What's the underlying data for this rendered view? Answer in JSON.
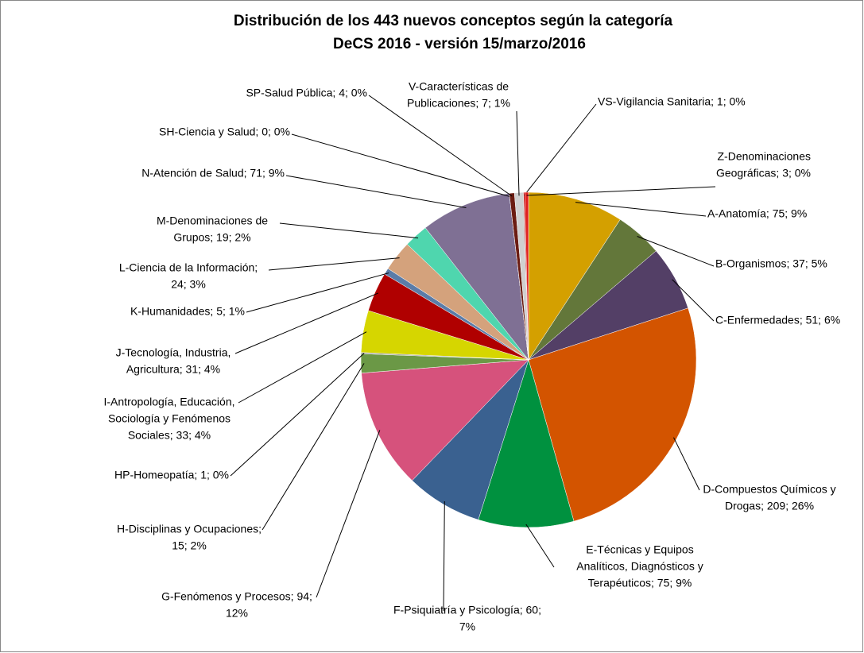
{
  "chart_data": {
    "type": "pie",
    "title": [
      "Distribución de los 443 nuevos conceptos según la categoría",
      "DeCS  2016  - versión 15/marzo/2016"
    ],
    "values": [
      75,
      37,
      51,
      209,
      75,
      60,
      94,
      15,
      1,
      33,
      31,
      5,
      24,
      19,
      71,
      0,
      4,
      7,
      1,
      3
    ],
    "labels": [
      [
        "A-Anatomía; 75; 9%"
      ],
      [
        "B-Organismos; 37; 5%"
      ],
      [
        "C-Enfermedades; 51; 6%"
      ],
      [
        "D-Compuestos Químicos y",
        "Drogas; 209; 26%"
      ],
      [
        "E-Técnicas  y Equipos",
        "Analíticos, Diagnósticos y",
        "Terapéuticos; 75; 9%"
      ],
      [
        "F-Psiquiatría y Psicología; 60;",
        "7%"
      ],
      [
        "G-Fenómenos y Procesos; 94;",
        "12%"
      ],
      [
        "H-Disciplinas y Ocupaciones;",
        "15; 2%"
      ],
      [
        "HP-Homeopatía; 1; 0%"
      ],
      [
        "I-Antropología, Educación,",
        "Sociología y Fenómenos",
        "Sociales; 33; 4%"
      ],
      [
        "J-Tecnología,  Industria,",
        "Agricultura; 31; 4%"
      ],
      [
        "K-Humanidades; 5; 1%"
      ],
      [
        "L-Ciencia  de la Información;",
        "24; 3%"
      ],
      [
        "M-Denominaciones  de",
        "Grupos; 19; 2%"
      ],
      [
        "N-Atención de Salud; 71; 9%"
      ],
      [
        "SH-Ciencia  y Salud; 0; 0%"
      ],
      [
        "SP-Salud Pública; 4; 0%"
      ],
      [
        "V-Características de",
        "Publicaciones; 7; 1%"
      ],
      [
        "VS-Vigilancia Sanitaria; 1; 0%"
      ],
      [
        "Z-Denominaciones",
        "Geográficas; 3; 0%"
      ]
    ],
    "colors": [
      "#d4a000",
      "#63773a",
      "#533f66",
      "#d35400",
      "#00913f",
      "#3a6190",
      "#d6527c",
      "#6b9846",
      "#8c8c8c",
      "#d6d600",
      "#b00000",
      "#5b7ca8",
      "#d4a27c",
      "#4fd6ae",
      "#7f7094",
      "#999999",
      "#6b1c12",
      "#d0d0d0",
      "#c00000",
      "#e02020"
    ]
  }
}
